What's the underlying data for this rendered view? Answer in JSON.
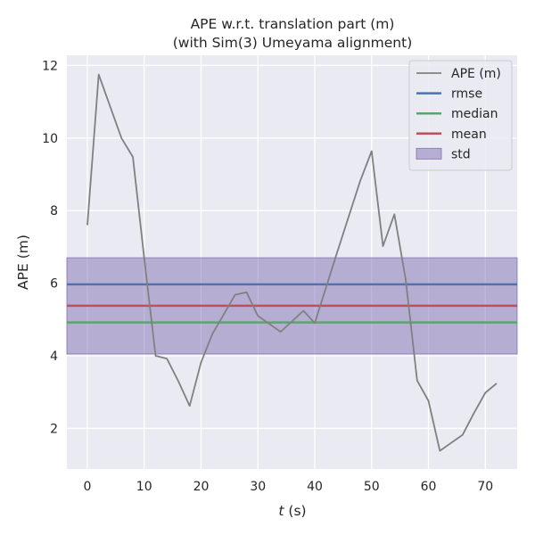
{
  "chart_data": {
    "type": "line",
    "title": "APE w.r.t. translation part (m)",
    "subtitle": "(with Sim(3) Umeyama alignment)",
    "xlabel_var": "t",
    "xlabel_unit": " (s)",
    "ylabel": "APE (m)",
    "xlim": [
      -3.6,
      75.6
    ],
    "ylim": [
      0.88,
      12.28
    ],
    "xticks": [
      "0",
      "10",
      "20",
      "30",
      "40",
      "50",
      "60",
      "70"
    ],
    "yticks": [
      "2",
      "4",
      "6",
      "8",
      "10",
      "12"
    ],
    "grid": true,
    "legend_position": "top-right",
    "series": [
      {
        "name": "APE (m)",
        "color": "#808080",
        "x": [
          0,
          2,
          6,
          8,
          10,
          12,
          14,
          16,
          18,
          20,
          22,
          26,
          28,
          30,
          34,
          38,
          40,
          44,
          48,
          50,
          52,
          54,
          56,
          58,
          60,
          62,
          66,
          68,
          70,
          72
        ],
        "y": [
          7.6,
          11.75,
          10.0,
          9.48,
          6.7,
          4.0,
          3.92,
          3.3,
          2.62,
          3.82,
          4.6,
          5.68,
          5.75,
          5.1,
          4.66,
          5.24,
          4.9,
          6.88,
          8.82,
          9.64,
          7.02,
          7.9,
          6.1,
          3.32,
          2.76,
          1.38,
          1.82,
          2.42,
          2.98,
          3.24
        ]
      }
    ],
    "stats": {
      "rmse": 5.97,
      "median": 4.92,
      "mean": 5.38,
      "std_band": [
        4.05,
        6.7
      ]
    },
    "legend": [
      {
        "label": "APE (m)",
        "kind": "line",
        "color": "#808080"
      },
      {
        "label": "rmse",
        "kind": "line",
        "color": "#4c72b0"
      },
      {
        "label": "median",
        "kind": "line",
        "color": "#55a868"
      },
      {
        "label": "mean",
        "kind": "line",
        "color": "#c44e52"
      },
      {
        "label": "std",
        "kind": "patch",
        "color": "#8172b2"
      }
    ]
  }
}
